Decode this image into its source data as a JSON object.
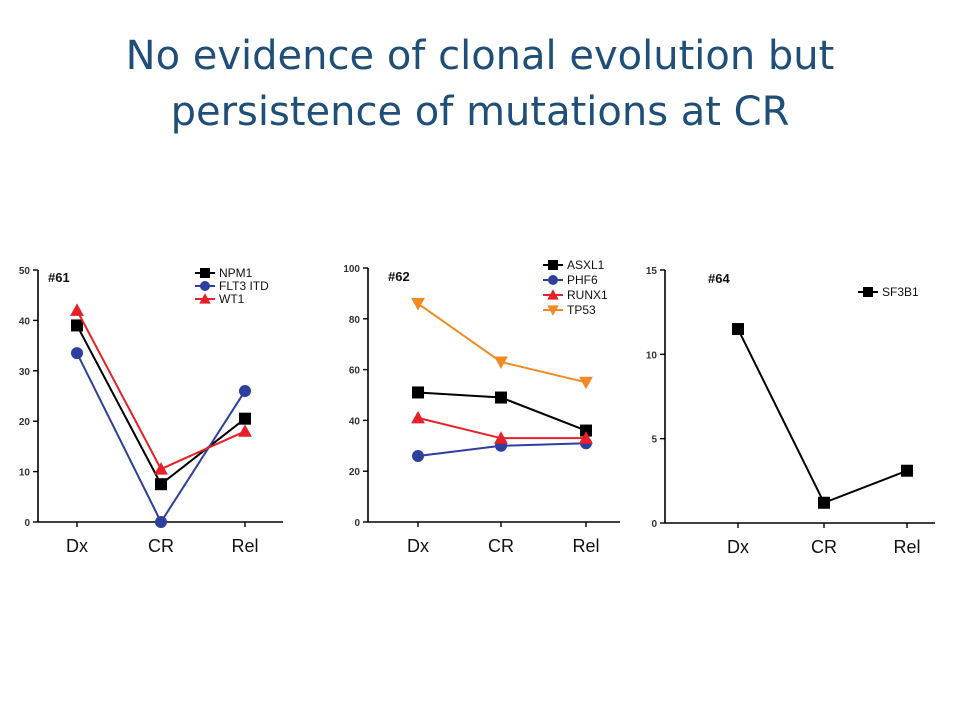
{
  "slide": {
    "title_line1": "No evidence of clonal evolution but",
    "title_line2": "persistence of mutations at CR"
  },
  "chart_data": [
    {
      "type": "line",
      "title": "#61",
      "categories": [
        "Dx",
        "CR",
        "Rel"
      ],
      "ylim": [
        0,
        50
      ],
      "yticks": [
        0,
        10,
        20,
        30,
        40,
        50
      ],
      "legend_position": "top-right",
      "series": [
        {
          "name": "NPM1",
          "values": [
            39,
            7.5,
            20.5
          ],
          "color": "#000000",
          "marker": "square"
        },
        {
          "name": "FLT3 ITD",
          "values": [
            33.5,
            0,
            26
          ],
          "color": "#2e3fa0",
          "marker": "circle"
        },
        {
          "name": "WT1",
          "values": [
            42,
            10.5,
            18
          ],
          "color": "#e8202a",
          "marker": "triangle-up"
        }
      ]
    },
    {
      "type": "line",
      "title": "#62",
      "categories": [
        "Dx",
        "CR",
        "Rel"
      ],
      "ylim": [
        0,
        100
      ],
      "yticks": [
        0,
        20,
        40,
        60,
        80,
        100
      ],
      "legend_position": "top-right",
      "series": [
        {
          "name": "ASXL1",
          "values": [
            51,
            49,
            36
          ],
          "color": "#000000",
          "marker": "square"
        },
        {
          "name": "PHF6",
          "values": [
            26,
            30,
            31
          ],
          "color": "#2e3fa0",
          "marker": "circle"
        },
        {
          "name": "RUNX1",
          "values": [
            41,
            33,
            33
          ],
          "color": "#e8202a",
          "marker": "triangle-up"
        },
        {
          "name": "TP53",
          "values": [
            86,
            63,
            55
          ],
          "color": "#f08a24",
          "marker": "triangle-down"
        }
      ]
    },
    {
      "type": "line",
      "title": "#64",
      "categories": [
        "Dx",
        "CR",
        "Rel"
      ],
      "ylim": [
        0,
        15
      ],
      "yticks": [
        0,
        5,
        10,
        15
      ],
      "legend_position": "top-right",
      "series": [
        {
          "name": "SF3B1",
          "values": [
            11.5,
            1.2,
            3.1
          ],
          "color": "#000000",
          "marker": "square"
        }
      ]
    }
  ]
}
